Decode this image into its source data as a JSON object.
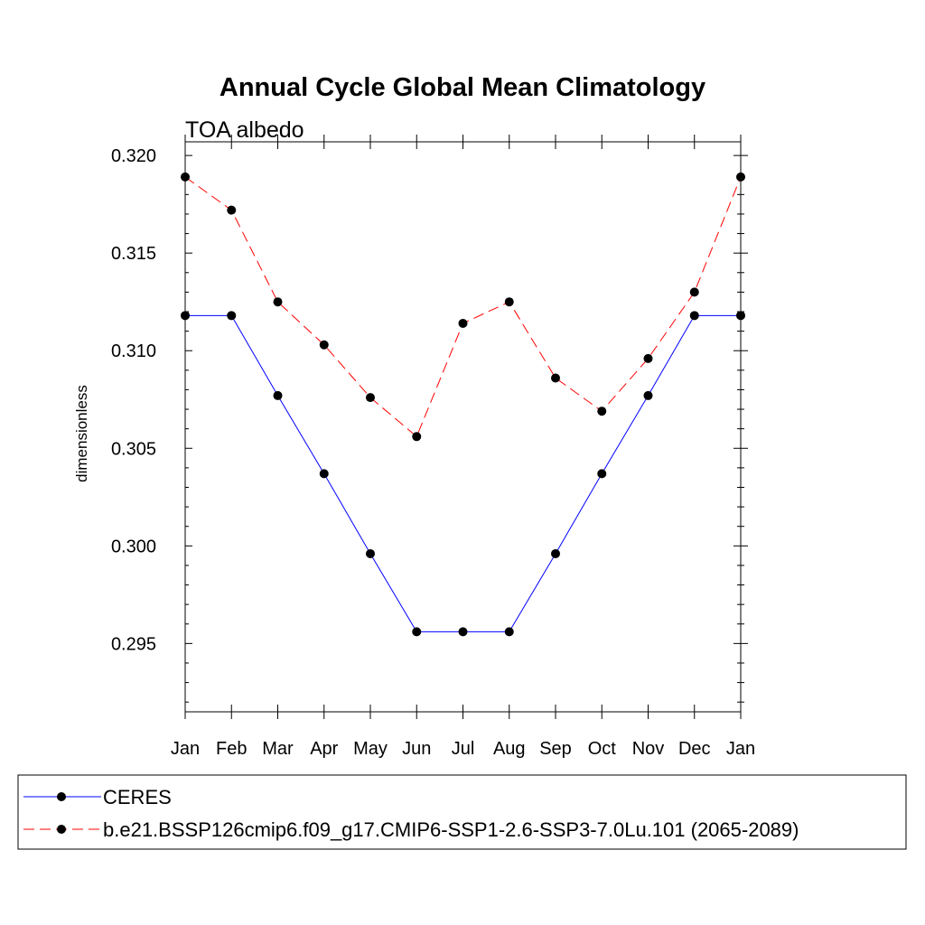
{
  "chart_data": {
    "type": "line",
    "title": "Annual Cycle Global Mean Climatology",
    "subtitle": "TOA albedo",
    "xlabel": "",
    "ylabel": "dimensionless",
    "categories": [
      "Jan",
      "Feb",
      "Mar",
      "Apr",
      "May",
      "Jun",
      "Jul",
      "Aug",
      "Sep",
      "Oct",
      "Nov",
      "Dec",
      "Jan"
    ],
    "ylim": [
      0.2915,
      0.3207
    ],
    "yticks": [
      0.295,
      0.3,
      0.305,
      0.31,
      0.315,
      0.32
    ],
    "ytick_labels": [
      "0.295",
      "0.300",
      "0.305",
      "0.310",
      "0.315",
      "0.320"
    ],
    "grid": false,
    "legend_position": "bottom",
    "series": [
      {
        "name": "CERES",
        "color": "#0000ff",
        "line_style": "solid",
        "marker": "filled-circle",
        "values": [
          0.3118,
          0.3118,
          0.3077,
          0.3037,
          0.2996,
          0.2956,
          0.2956,
          0.2956,
          0.2996,
          0.3037,
          0.3077,
          0.3118,
          0.3118
        ]
      },
      {
        "name": "b.e21.BSSP126cmip6.f09_g17.CMIP6-SSP1-2.6-SSP3-7.0Lu.101 (2065-2089)",
        "color": "#ff0000",
        "line_style": "dashed",
        "marker": "filled-circle",
        "values": [
          0.3189,
          0.3172,
          0.3125,
          0.3103,
          0.3076,
          0.3056,
          0.3114,
          0.3125,
          0.3086,
          0.3069,
          0.3096,
          0.313,
          0.3189
        ]
      }
    ]
  }
}
